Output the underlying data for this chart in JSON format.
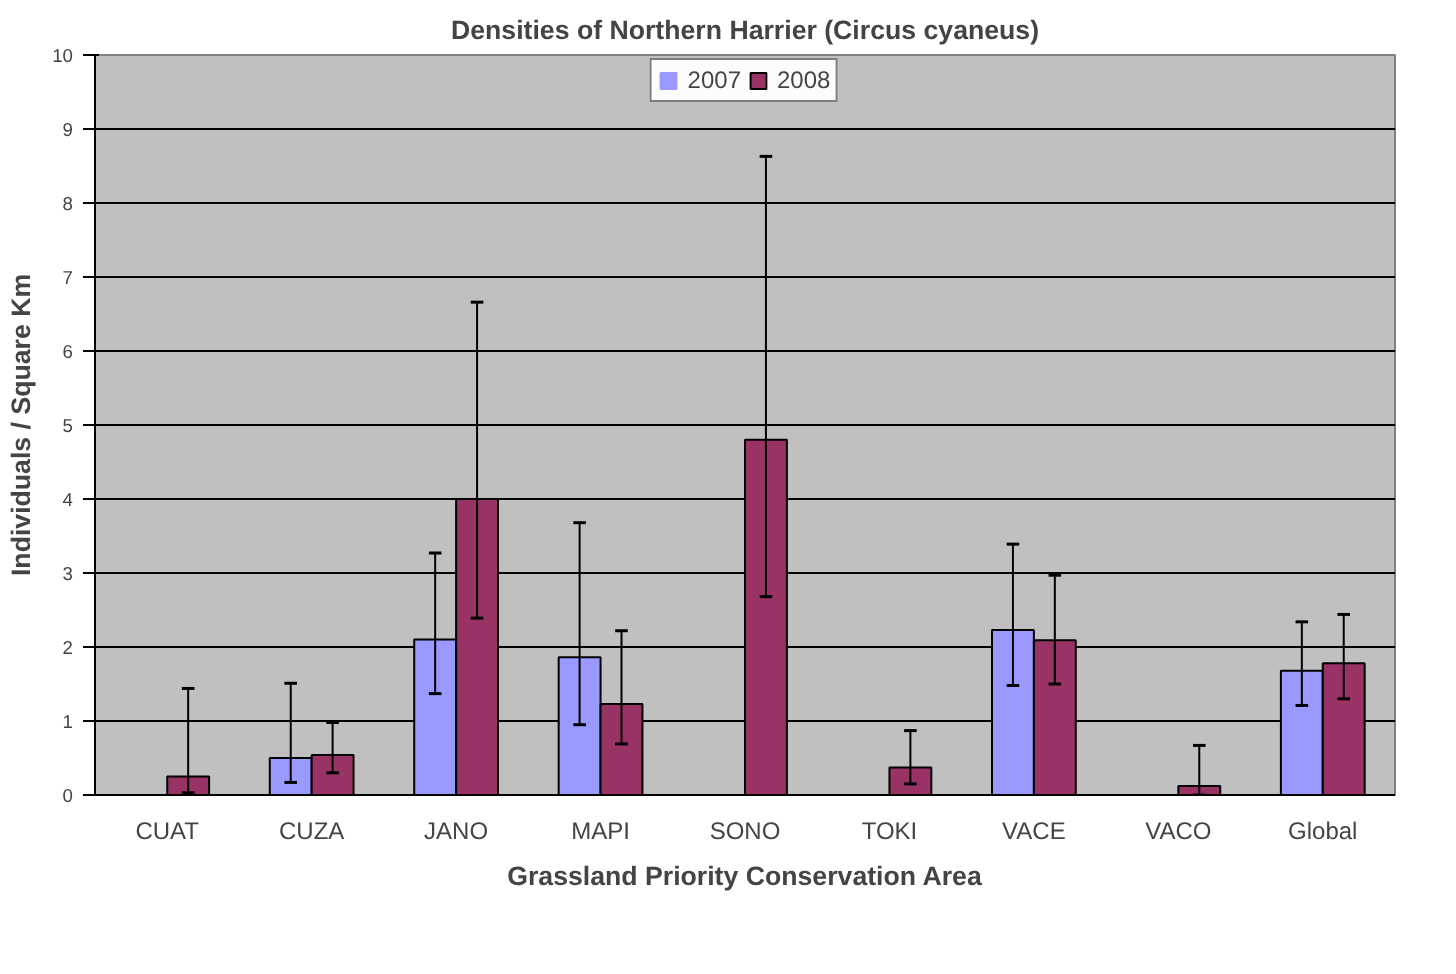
{
  "chart_data": {
    "type": "bar",
    "title": "Densities of Northern Harrier (Circus cyaneus)",
    "xlabel": "Grassland Priority Conservation Area",
    "ylabel": "Individuals / Square Km",
    "categories": [
      "CUAT",
      "CUZA",
      "JANO",
      "MAPI",
      "SONO",
      "TOKI",
      "VACE",
      "VACO",
      "Global"
    ],
    "series": [
      {
        "name": "2007",
        "color": "#9999ff",
        "values": [
          0,
          0.5,
          2.1,
          1.86,
          0,
          0,
          2.23,
          0,
          1.68
        ],
        "errors": [
          null,
          [
            0.17,
            1.51
          ],
          [
            1.37,
            3.27
          ],
          [
            0.95,
            3.68
          ],
          null,
          null,
          [
            1.48,
            3.39
          ],
          null,
          [
            1.21,
            2.34
          ]
        ]
      },
      {
        "name": "2008",
        "color": "#993366",
        "values": [
          0.25,
          0.54,
          4.0,
          1.23,
          4.8,
          0.37,
          2.09,
          0.12,
          1.78
        ],
        "errors": [
          [
            0.03,
            1.44
          ],
          [
            0.3,
            0.98
          ],
          [
            2.39,
            6.66
          ],
          [
            0.69,
            2.22
          ],
          [
            2.68,
            8.63
          ],
          [
            0.15,
            0.87
          ],
          [
            1.5,
            2.97
          ],
          [
            0.0,
            0.67
          ],
          [
            1.3,
            2.44
          ]
        ]
      }
    ],
    "ylim": [
      0,
      10
    ],
    "yticks": [
      0,
      1,
      2,
      3,
      4,
      5,
      6,
      7,
      8,
      9,
      10
    ],
    "grid": "y",
    "legend": "top"
  }
}
